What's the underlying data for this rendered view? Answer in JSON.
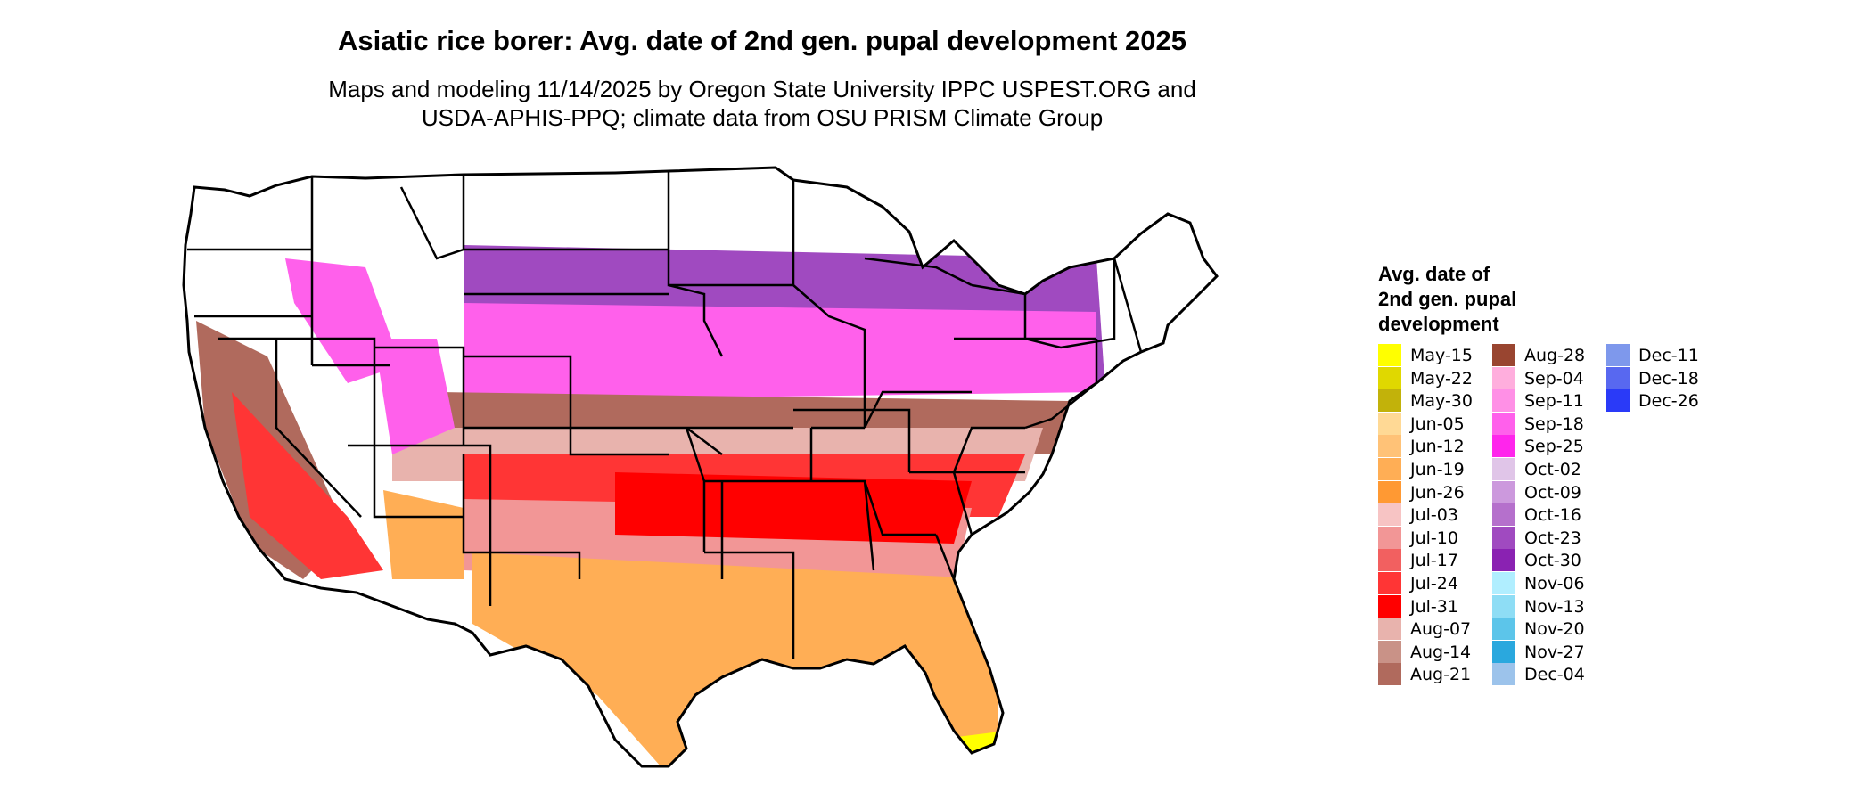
{
  "header": {
    "title": "Asiatic rice borer: Avg. date of 2nd gen. pupal development 2025",
    "subtitle_line1": "Maps and modeling 11/14/2025 by Oregon State University IPPC USPEST.ORG and",
    "subtitle_line2": "USDA-APHIS-PPQ; climate data from OSU PRISM Climate Group"
  },
  "legend": {
    "title_line1": "Avg. date of",
    "title_line2": "2nd gen. pupal",
    "title_line3": "development",
    "columns": [
      [
        {
          "label": "May-15",
          "color": "#FFFF00"
        },
        {
          "label": "May-22",
          "color": "#E0D800"
        },
        {
          "label": "May-30",
          "color": "#C2B20A"
        },
        {
          "label": "Jun-05",
          "color": "#FFD995"
        },
        {
          "label": "Jun-12",
          "color": "#FFC277"
        },
        {
          "label": "Jun-19",
          "color": "#FFAE55"
        },
        {
          "label": "Jun-26",
          "color": "#FF9933"
        },
        {
          "label": "Jul-03",
          "color": "#F7C4C4"
        },
        {
          "label": "Jul-10",
          "color": "#F29696"
        },
        {
          "label": "Jul-17",
          "color": "#F26060"
        },
        {
          "label": "Jul-24",
          "color": "#FF3535"
        },
        {
          "label": "Jul-31",
          "color": "#FF0000"
        },
        {
          "label": "Aug-07",
          "color": "#E8B3AD"
        },
        {
          "label": "Aug-14",
          "color": "#C99287"
        },
        {
          "label": "Aug-21",
          "color": "#B06A5D"
        }
      ],
      [
        {
          "label": "Aug-28",
          "color": "#994530"
        },
        {
          "label": "Sep-04",
          "color": "#FFAEDD"
        },
        {
          "label": "Sep-11",
          "color": "#FF90E6"
        },
        {
          "label": "Sep-18",
          "color": "#FF60EB"
        },
        {
          "label": "Sep-25",
          "color": "#FF25EC"
        },
        {
          "label": "Oct-02",
          "color": "#E0C5E8"
        },
        {
          "label": "Oct-09",
          "color": "#CC99DD"
        },
        {
          "label": "Oct-16",
          "color": "#B570CC"
        },
        {
          "label": "Oct-23",
          "color": "#A04AC0"
        },
        {
          "label": "Oct-30",
          "color": "#8A22B2"
        },
        {
          "label": "Nov-06",
          "color": "#B0EEFF"
        },
        {
          "label": "Nov-13",
          "color": "#8EDDF5"
        },
        {
          "label": "Nov-20",
          "color": "#5CC5EA"
        },
        {
          "label": "Nov-27",
          "color": "#2AA8DE"
        },
        {
          "label": "Dec-04",
          "color": "#9CC3EB"
        }
      ],
      [
        {
          "label": "Dec-11",
          "color": "#7E98EC"
        },
        {
          "label": "Dec-18",
          "color": "#5868F0"
        },
        {
          "label": "Dec-26",
          "color": "#2A3AF8"
        }
      ]
    ]
  },
  "map": {
    "bands": [
      {
        "color": "#A04AC0"
      },
      {
        "color": "#FF60EB"
      },
      {
        "color": "#B06A5D"
      },
      {
        "color": "#E8B3AD"
      },
      {
        "color": "#FF3535"
      },
      {
        "color": "#F29696"
      },
      {
        "color": "#FF0000"
      },
      {
        "color": "#FFAE55"
      },
      {
        "color": "#FFFF00"
      }
    ]
  }
}
